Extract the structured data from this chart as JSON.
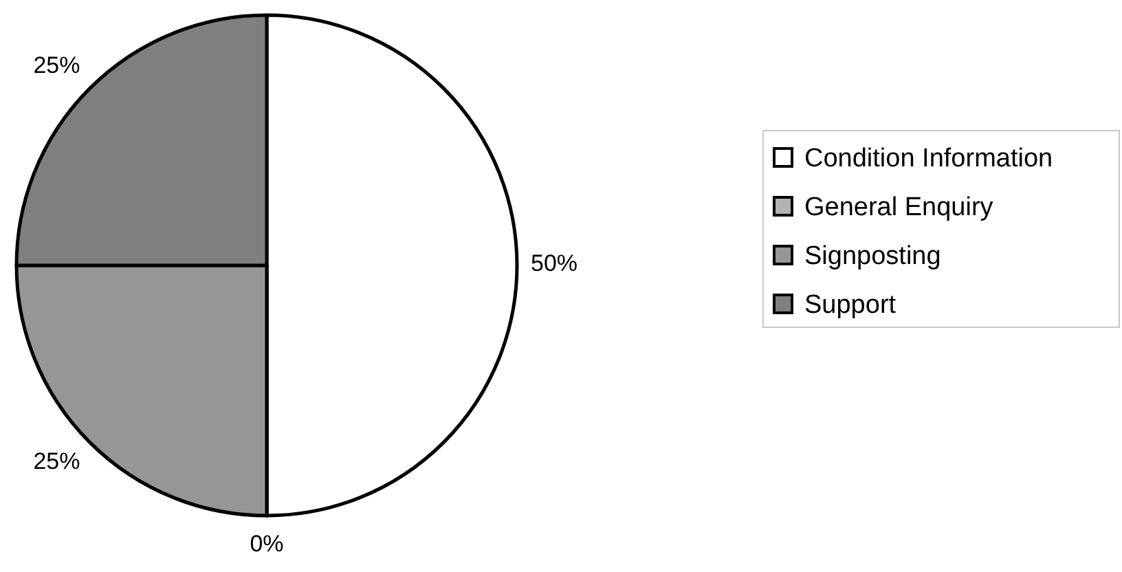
{
  "chart_data": {
    "type": "pie",
    "categories": [
      "Condition Information",
      "General Enquiry",
      "Signposting",
      "Support"
    ],
    "values": [
      50,
      0,
      25,
      25
    ],
    "colors": [
      "#ffffff",
      "#b2b2b2",
      "#969696",
      "#7f7f7f"
    ],
    "value_labels": [
      "50%",
      "0%",
      "25%",
      "25%"
    ],
    "legend": "right"
  }
}
